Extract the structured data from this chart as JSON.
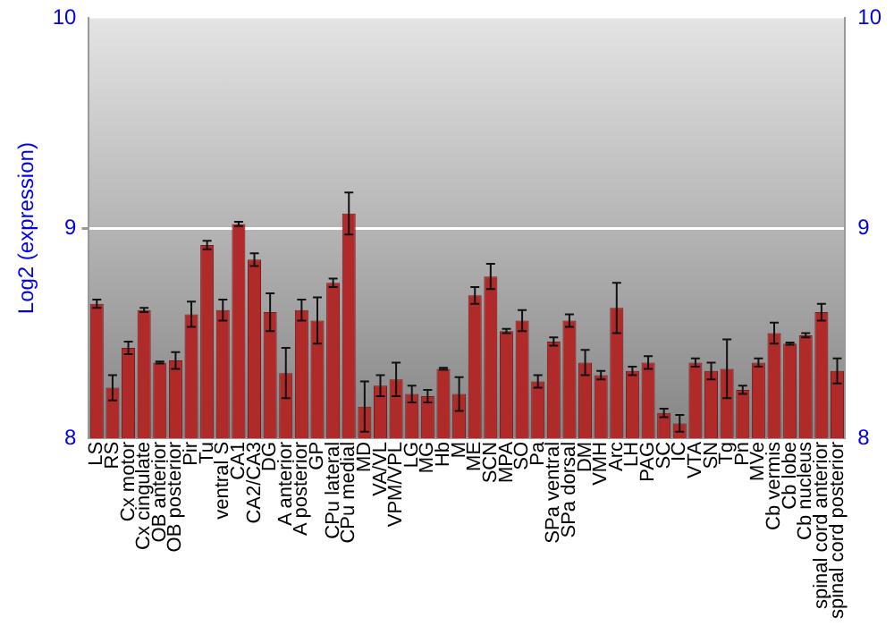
{
  "chart_data": {
    "type": "bar",
    "ylabel": "Log2 (expression)",
    "categories": [
      "LS",
      "RS",
      "Cx motor",
      "Cx cingulate",
      "OB anterior",
      "OB posterior",
      "Pir",
      "Tu",
      "ventral S",
      "CA1",
      "CA2/CA3",
      "DG",
      "A anterior",
      "A posterior",
      "GP",
      "CPu lateral",
      "CPu medial",
      "MD",
      "VA/VL",
      "VPM/VPL",
      "LG",
      "MG",
      "Hb",
      "M",
      "ME",
      "SCN",
      "MPA",
      "SO",
      "Pa",
      "SPa ventral",
      "SPa dorsal",
      "DM",
      "VMH",
      "Arc",
      "LH",
      "PAG",
      "SC",
      "IC",
      "VTA",
      "SN",
      "Tg",
      "Pn",
      "MVe",
      "Cb vermis",
      "Cb lobe",
      "Cb nucleus",
      "spinal cord anterior",
      "spinal cord posterior"
    ],
    "values": [
      8.64,
      8.24,
      8.43,
      8.61,
      8.36,
      8.37,
      8.59,
      8.92,
      8.61,
      9.02,
      8.85,
      8.6,
      8.31,
      8.61,
      8.56,
      8.74,
      9.07,
      8.15,
      8.25,
      8.28,
      8.21,
      8.2,
      8.33,
      8.21,
      8.68,
      8.77,
      8.51,
      8.56,
      8.27,
      8.46,
      8.56,
      8.36,
      8.3,
      8.62,
      8.32,
      8.36,
      8.12,
      8.07,
      8.36,
      8.32,
      8.33,
      8.23,
      8.36,
      8.5,
      8.45,
      8.49,
      8.6,
      8.32
    ],
    "errors": [
      0.02,
      0.06,
      0.03,
      0.01,
      0.005,
      0.04,
      0.06,
      0.02,
      0.05,
      0.01,
      0.03,
      0.09,
      0.12,
      0.05,
      0.11,
      0.02,
      0.1,
      0.12,
      0.05,
      0.08,
      0.04,
      0.03,
      0.005,
      0.08,
      0.04,
      0.06,
      0.01,
      0.05,
      0.03,
      0.02,
      0.03,
      0.06,
      0.02,
      0.12,
      0.02,
      0.03,
      0.02,
      0.04,
      0.02,
      0.04,
      0.14,
      0.02,
      0.02,
      0.05,
      0.005,
      0.01,
      0.04,
      0.06
    ],
    "color": "#b02a2a",
    "ylim": [
      8,
      10
    ],
    "yticks": [
      8,
      9,
      10
    ],
    "y2lim": [
      8,
      10
    ],
    "y2ticks": [
      8,
      9,
      10
    ],
    "grid": "y",
    "legend": false
  }
}
